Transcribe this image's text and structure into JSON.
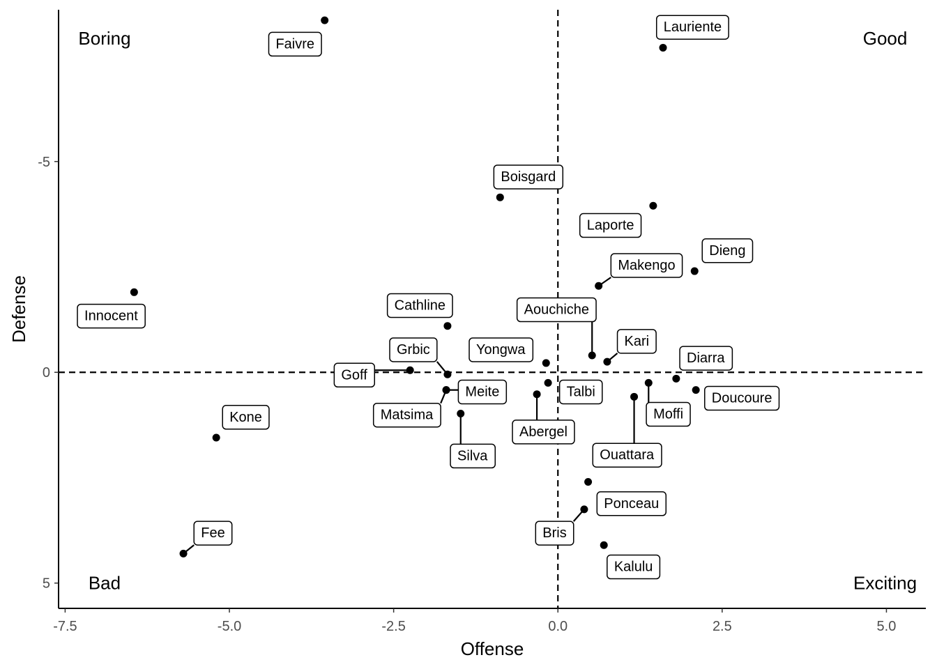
{
  "chart_data": {
    "type": "scatter",
    "xlabel": "Offense",
    "ylabel": "Defense",
    "xlim": [
      -7.6,
      5.6
    ],
    "ylim": [
      -8.6,
      5.6
    ],
    "y_reversed": true,
    "xticks": [
      {
        "value": -7.5,
        "label": "-7.5"
      },
      {
        "value": -5.0,
        "label": "-5.0"
      },
      {
        "value": -2.5,
        "label": "-2.5"
      },
      {
        "value": 0.0,
        "label": "0.0"
      },
      {
        "value": 2.5,
        "label": "2.5"
      },
      {
        "value": 5.0,
        "label": "5.0"
      }
    ],
    "yticks": [
      {
        "value": -5,
        "label": "-5"
      },
      {
        "value": 0,
        "label": "0"
      },
      {
        "value": 5,
        "label": "5"
      }
    ],
    "reference_lines": [
      {
        "axis": "x",
        "value": 0,
        "style": "dashed"
      },
      {
        "axis": "y",
        "value": 0,
        "style": "dashed"
      }
    ],
    "quadrant_labels": [
      {
        "text": "Boring",
        "corner": "top-left"
      },
      {
        "text": "Good",
        "corner": "top-right"
      },
      {
        "text": "Bad",
        "corner": "bottom-left"
      },
      {
        "text": "Exciting",
        "corner": "bottom-right"
      }
    ],
    "points": [
      {
        "name": "Faivre",
        "x": -3.55,
        "y": -8.35,
        "label_x": -4.0,
        "label_y": -7.8,
        "connector": false
      },
      {
        "name": "Lauriente",
        "x": 1.6,
        "y": -7.7,
        "label_x": 2.05,
        "label_y": -8.2,
        "connector": false
      },
      {
        "name": "Boisgard",
        "x": -0.88,
        "y": -4.15,
        "label_x": -0.45,
        "label_y": -4.65,
        "connector": false
      },
      {
        "name": "Laporte",
        "x": 1.45,
        "y": -3.95,
        "label_x": 0.8,
        "label_y": -3.5,
        "connector": false
      },
      {
        "name": "Dieng",
        "x": 2.08,
        "y": -2.4,
        "label_x": 2.58,
        "label_y": -2.9,
        "connector": false
      },
      {
        "name": "Makengo",
        "x": 0.62,
        "y": -2.05,
        "label_x": 1.35,
        "label_y": -2.55,
        "connector": true
      },
      {
        "name": "Innocent",
        "x": -6.45,
        "y": -1.9,
        "label_x": -6.8,
        "label_y": -1.35,
        "connector": false
      },
      {
        "name": "Cathline",
        "x": -1.68,
        "y": -1.1,
        "label_x": -2.1,
        "label_y": -1.6,
        "connector": false
      },
      {
        "name": "Aouchiche",
        "x": 0.52,
        "y": -0.4,
        "label_x": -0.02,
        "label_y": -1.5,
        "connector": true
      },
      {
        "name": "Kari",
        "x": 0.75,
        "y": -0.25,
        "label_x": 1.2,
        "label_y": -0.75,
        "connector": true
      },
      {
        "name": "Grbic",
        "x": -1.68,
        "y": 0.05,
        "label_x": -2.2,
        "label_y": -0.55,
        "connector": true
      },
      {
        "name": "Yongwa",
        "x": -0.18,
        "y": -0.22,
        "label_x": -0.87,
        "label_y": -0.55,
        "connector": false
      },
      {
        "name": "Goff",
        "x": -2.25,
        "y": -0.05,
        "label_x": -3.1,
        "label_y": 0.05,
        "connector": true
      },
      {
        "name": "Diarra",
        "x": 1.8,
        "y": 0.15,
        "label_x": 2.25,
        "label_y": -0.35,
        "connector": false
      },
      {
        "name": "Talbi",
        "x": -0.15,
        "y": 0.25,
        "label_x": 0.35,
        "label_y": 0.45,
        "connector": false
      },
      {
        "name": "Meite",
        "x": -1.7,
        "y": 0.42,
        "label_x": -1.15,
        "label_y": 0.45,
        "connector": true
      },
      {
        "name": "Matsima",
        "x": -1.7,
        "y": 0.42,
        "label_x": -2.3,
        "label_y": 1.0,
        "connector": true
      },
      {
        "name": "Moffi",
        "x": 1.38,
        "y": 0.25,
        "label_x": 1.68,
        "label_y": 0.98,
        "connector": true
      },
      {
        "name": "Doucoure",
        "x": 2.1,
        "y": 0.42,
        "label_x": 2.8,
        "label_y": 0.6,
        "connector": false
      },
      {
        "name": "Abergel",
        "x": -0.32,
        "y": 0.52,
        "label_x": -0.22,
        "label_y": 1.4,
        "connector": true
      },
      {
        "name": "Ouattara",
        "x": 1.16,
        "y": 0.58,
        "label_x": 1.05,
        "label_y": 1.95,
        "connector": true
      },
      {
        "name": "Kone",
        "x": -5.2,
        "y": 1.55,
        "label_x": -4.75,
        "label_y": 1.05,
        "connector": false
      },
      {
        "name": "Silva",
        "x": -1.48,
        "y": 0.98,
        "label_x": -1.3,
        "label_y": 1.97,
        "connector": true
      },
      {
        "name": "Ponceau",
        "x": 0.46,
        "y": 2.6,
        "label_x": 1.12,
        "label_y": 3.1,
        "connector": false
      },
      {
        "name": "Bris",
        "x": 0.4,
        "y": 3.25,
        "label_x": -0.05,
        "label_y": 3.8,
        "connector": true
      },
      {
        "name": "Fee",
        "x": -5.7,
        "y": 4.3,
        "label_x": -5.25,
        "label_y": 3.8,
        "connector": true
      },
      {
        "name": "Kalulu",
        "x": 0.7,
        "y": 4.1,
        "label_x": 1.15,
        "label_y": 4.6,
        "connector": false
      }
    ]
  }
}
